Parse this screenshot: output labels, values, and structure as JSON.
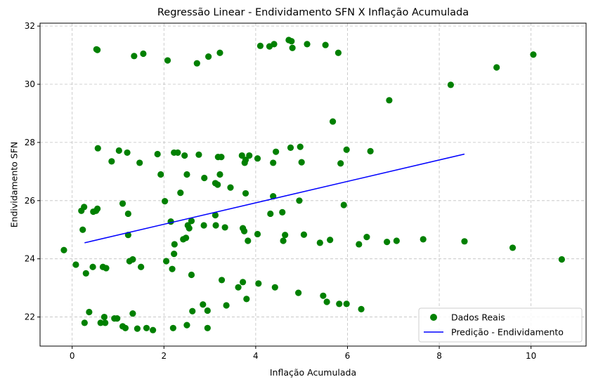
{
  "chart_data": {
    "type": "scatter",
    "title": "Regressão Linear - Endividamento SFN X Inflação Acumulada",
    "xlabel": "Inflação Acumulada",
    "ylabel": "Endividamento SFN",
    "xlim": [
      -0.7,
      11.2
    ],
    "ylim": [
      21.0,
      32.1
    ],
    "xticks": [
      0,
      2,
      4,
      6,
      8,
      10
    ],
    "yticks": [
      22,
      24,
      26,
      28,
      30,
      32
    ],
    "grid": true,
    "legend_position": "bottom-right",
    "series": [
      {
        "name": "Dados Reais",
        "kind": "scatter",
        "color": "#008000",
        "points": [
          [
            -0.18,
            24.3
          ],
          [
            0.08,
            23.8
          ],
          [
            0.2,
            25.65
          ],
          [
            0.23,
            25.0
          ],
          [
            0.26,
            25.78
          ],
          [
            0.27,
            21.8
          ],
          [
            0.3,
            23.5
          ],
          [
            0.37,
            22.17
          ],
          [
            0.45,
            23.72
          ],
          [
            0.46,
            25.62
          ],
          [
            0.52,
            25.65
          ],
          [
            0.53,
            31.2
          ],
          [
            0.55,
            31.18
          ],
          [
            0.55,
            25.72
          ],
          [
            0.56,
            27.8
          ],
          [
            0.62,
            21.8
          ],
          [
            0.67,
            23.72
          ],
          [
            0.72,
            21.8
          ],
          [
            0.7,
            22.0
          ],
          [
            0.74,
            23.68
          ],
          [
            0.86,
            27.35
          ],
          [
            0.92,
            21.95
          ],
          [
            0.98,
            21.95
          ],
          [
            1.02,
            27.72
          ],
          [
            1.1,
            21.68
          ],
          [
            1.1,
            25.9
          ],
          [
            1.16,
            21.62
          ],
          [
            1.2,
            27.65
          ],
          [
            1.22,
            25.55
          ],
          [
            1.22,
            24.82
          ],
          [
            1.25,
            23.92
          ],
          [
            1.32,
            23.98
          ],
          [
            1.32,
            22.12
          ],
          [
            1.35,
            30.97
          ],
          [
            1.42,
            21.6
          ],
          [
            1.47,
            27.3
          ],
          [
            1.5,
            23.72
          ],
          [
            1.55,
            31.05
          ],
          [
            1.62,
            21.62
          ],
          [
            1.76,
            21.55
          ],
          [
            1.86,
            27.6
          ],
          [
            1.93,
            26.9
          ],
          [
            2.02,
            25.98
          ],
          [
            2.05,
            23.92
          ],
          [
            2.08,
            30.82
          ],
          [
            2.15,
            25.28
          ],
          [
            2.18,
            23.65
          ],
          [
            2.2,
            21.62
          ],
          [
            2.22,
            27.65
          ],
          [
            2.23,
            24.5
          ],
          [
            2.22,
            24.17
          ],
          [
            2.3,
            27.65
          ],
          [
            2.36,
            26.27
          ],
          [
            2.42,
            24.67
          ],
          [
            2.45,
            27.55
          ],
          [
            2.48,
            24.72
          ],
          [
            2.5,
            26.9
          ],
          [
            2.5,
            21.72
          ],
          [
            2.52,
            25.15
          ],
          [
            2.55,
            25.05
          ],
          [
            2.6,
            25.3
          ],
          [
            2.6,
            23.45
          ],
          [
            2.62,
            22.2
          ],
          [
            2.72,
            30.72
          ],
          [
            2.76,
            27.58
          ],
          [
            2.85,
            22.43
          ],
          [
            2.87,
            25.15
          ],
          [
            2.88,
            26.78
          ],
          [
            2.95,
            22.22
          ],
          [
            2.95,
            21.62
          ],
          [
            2.97,
            30.95
          ],
          [
            3.12,
            26.6
          ],
          [
            3.12,
            25.5
          ],
          [
            3.13,
            25.15
          ],
          [
            3.17,
            26.55
          ],
          [
            3.18,
            27.5
          ],
          [
            3.22,
            31.08
          ],
          [
            3.22,
            26.9
          ],
          [
            3.25,
            27.5
          ],
          [
            3.26,
            23.27
          ],
          [
            3.33,
            25.08
          ],
          [
            3.36,
            22.4
          ],
          [
            3.45,
            26.45
          ],
          [
            3.62,
            23.02
          ],
          [
            3.7,
            27.55
          ],
          [
            3.72,
            23.2
          ],
          [
            3.72,
            25.05
          ],
          [
            3.75,
            24.95
          ],
          [
            3.76,
            27.3
          ],
          [
            3.78,
            27.4
          ],
          [
            3.78,
            26.25
          ],
          [
            3.8,
            22.62
          ],
          [
            3.83,
            24.62
          ],
          [
            3.86,
            27.55
          ],
          [
            4.04,
            24.85
          ],
          [
            4.04,
            27.45
          ],
          [
            4.06,
            23.15
          ],
          [
            4.1,
            31.32
          ],
          [
            4.3,
            31.3
          ],
          [
            4.32,
            25.55
          ],
          [
            4.38,
            26.15
          ],
          [
            4.38,
            27.3
          ],
          [
            4.4,
            31.38
          ],
          [
            4.42,
            23.02
          ],
          [
            4.44,
            27.68
          ],
          [
            4.58,
            25.6
          ],
          [
            4.6,
            24.62
          ],
          [
            4.64,
            24.82
          ],
          [
            4.72,
            31.52
          ],
          [
            4.76,
            27.82
          ],
          [
            4.78,
            31.48
          ],
          [
            4.8,
            31.25
          ],
          [
            4.93,
            22.83
          ],
          [
            4.95,
            26.0
          ],
          [
            4.97,
            27.85
          ],
          [
            5.0,
            27.32
          ],
          [
            5.05,
            24.83
          ],
          [
            5.12,
            31.38
          ],
          [
            5.4,
            24.55
          ],
          [
            5.47,
            22.73
          ],
          [
            5.52,
            31.35
          ],
          [
            5.55,
            22.52
          ],
          [
            5.62,
            24.65
          ],
          [
            5.68,
            28.72
          ],
          [
            5.8,
            31.08
          ],
          [
            5.82,
            22.45
          ],
          [
            5.85,
            27.28
          ],
          [
            5.92,
            25.85
          ],
          [
            5.98,
            27.75
          ],
          [
            5.98,
            22.45
          ],
          [
            6.25,
            24.5
          ],
          [
            6.3,
            22.27
          ],
          [
            6.42,
            24.75
          ],
          [
            6.5,
            27.7
          ],
          [
            6.86,
            24.58
          ],
          [
            6.91,
            29.45
          ],
          [
            7.07,
            24.62
          ],
          [
            7.65,
            24.67
          ],
          [
            8.25,
            29.98
          ],
          [
            8.55,
            24.6
          ],
          [
            9.25,
            30.58
          ],
          [
            9.6,
            24.38
          ],
          [
            10.05,
            31.02
          ],
          [
            10.67,
            23.98
          ]
        ]
      },
      {
        "name": "Predição - Endividamento",
        "kind": "line",
        "color": "#0000ff",
        "points": [
          [
            0.27,
            24.55
          ],
          [
            8.55,
            27.6
          ]
        ]
      }
    ]
  }
}
